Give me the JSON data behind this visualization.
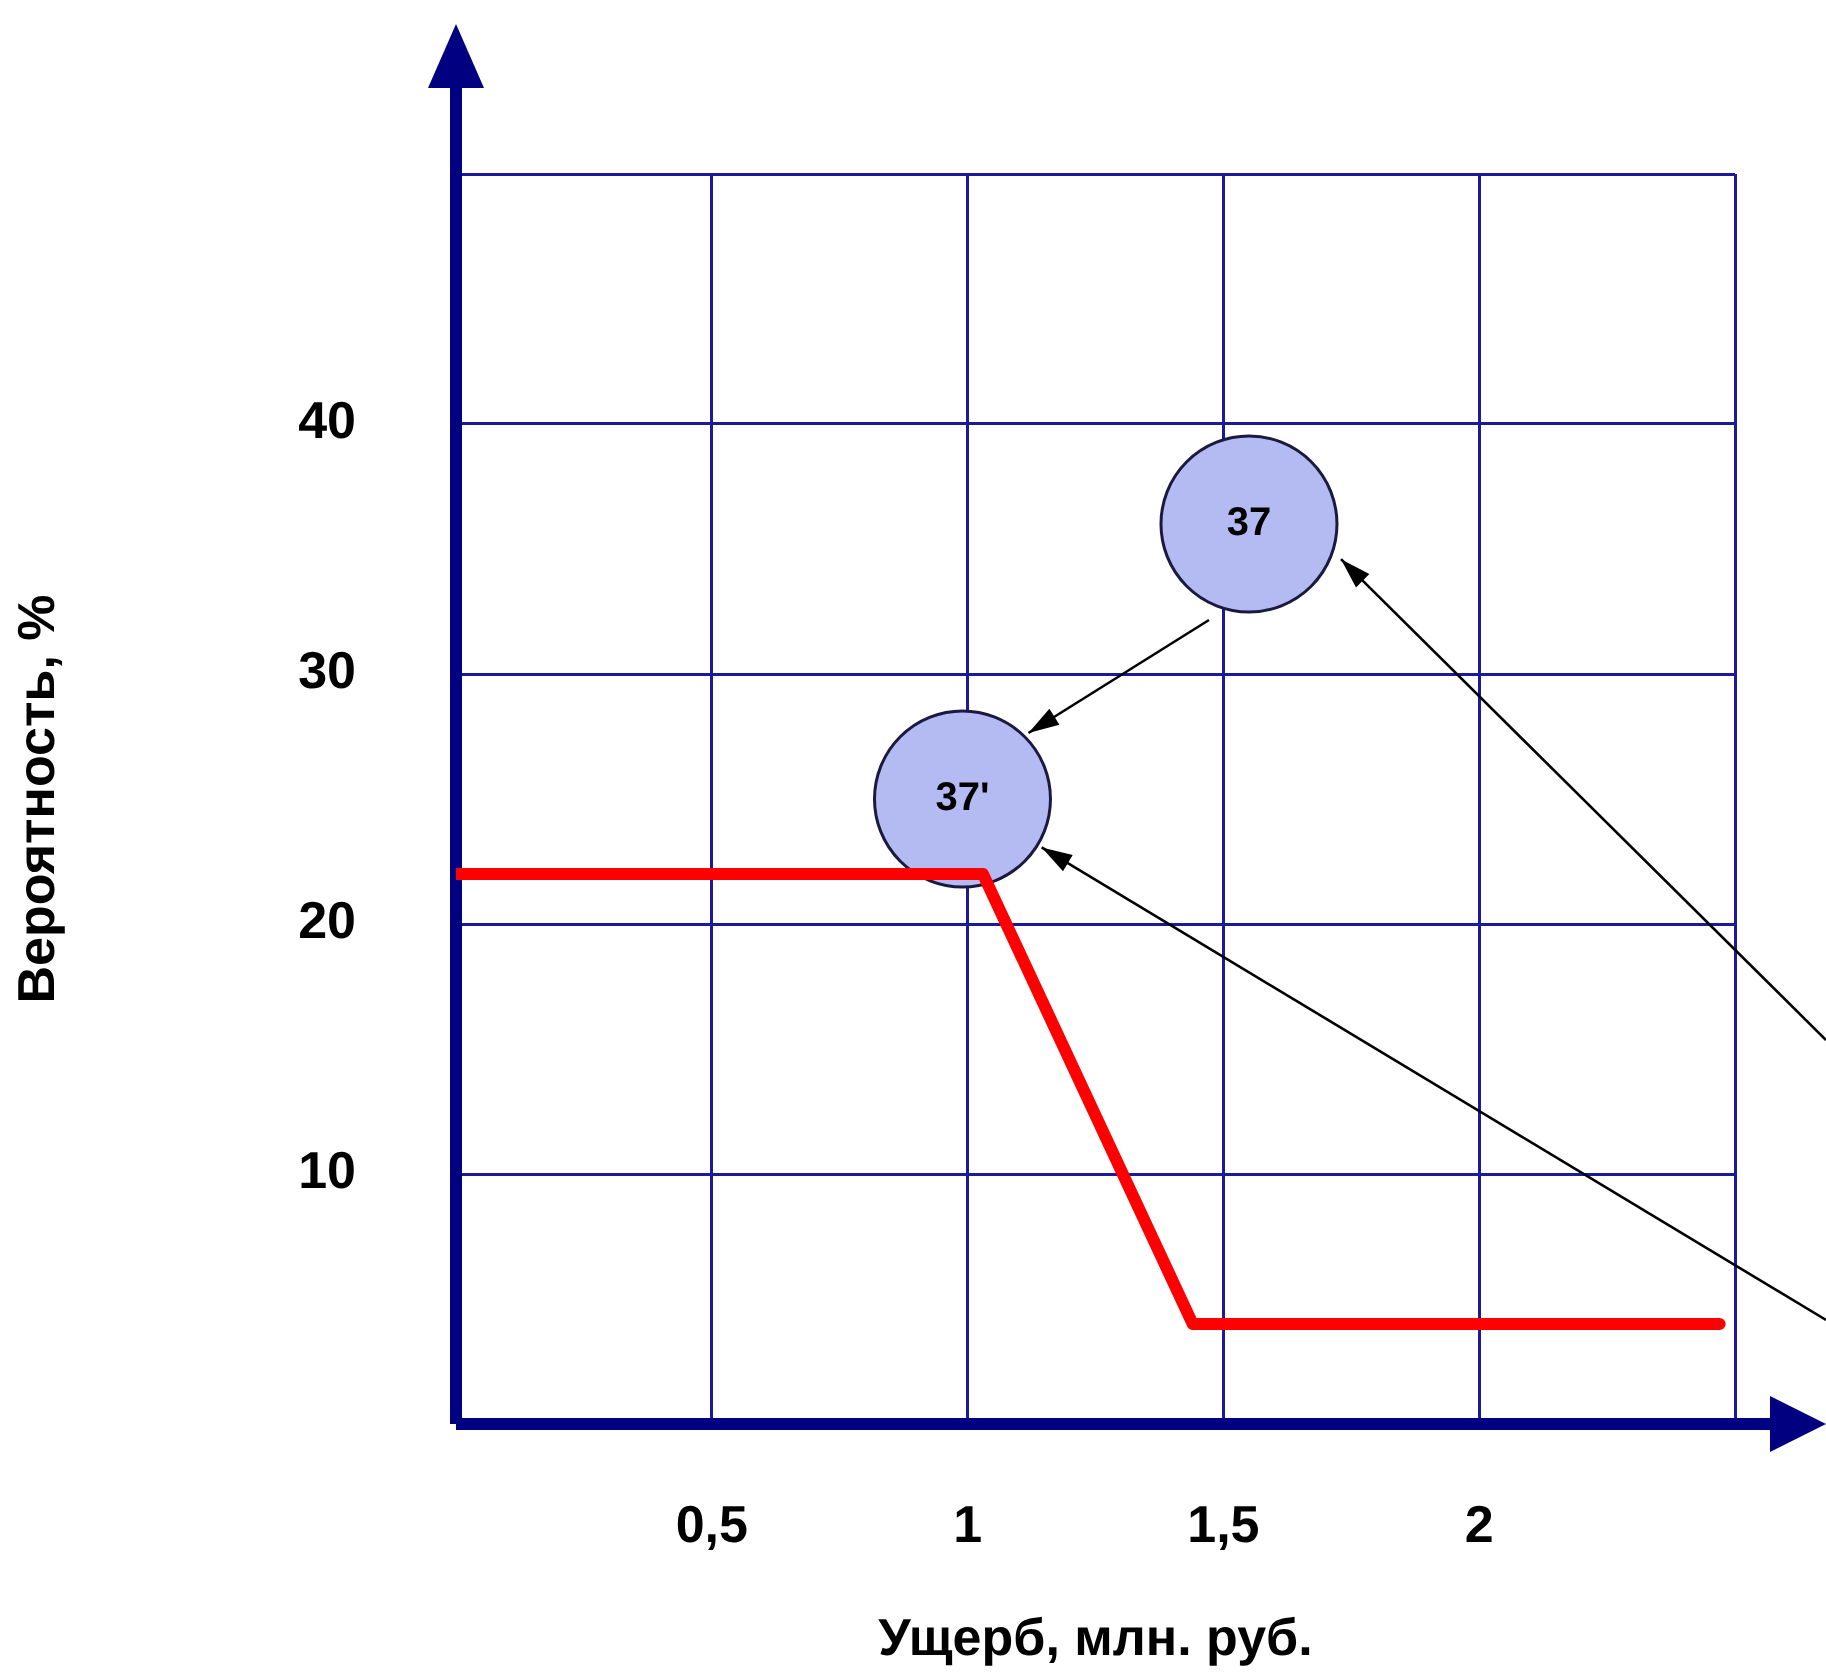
{
  "chart_data": {
    "type": "line",
    "xlabel": "Ущерб, млн. руб.",
    "ylabel": "Вероятность, %",
    "x": [
      0,
      1.03,
      1.44,
      2.47
    ],
    "series": [
      {
        "color": "#ff0000",
        "values": [
          22,
          22,
          4,
          4
        ]
      },
      {
        "type": "scatter",
        "marker": "circle",
        "color": "#b4baf2",
        "x": [
          1.55,
          0.99
        ],
        "values": [
          36,
          25
        ]
      }
    ],
    "annotations": [
      {
        "text": "37",
        "x": 1.55,
        "y": 36
      },
      {
        "text": "37'",
        "x": 0.99,
        "y": 25
      }
    ],
    "xlim": [
      0,
      2.5
    ],
    "xticks": [
      {
        "value": 0,
        "label": null
      },
      {
        "value": 0.5,
        "label": "0,5"
      },
      1,
      {
        "value": 1.5,
        "label": "1,5"
      },
      2,
      {
        "value": 2.5,
        "label": null
      }
    ],
    "ylim": [
      0,
      50
    ],
    "yticks": [
      {
        "value": 0,
        "label": null
      },
      10,
      20,
      30,
      40,
      {
        "value": 50,
        "label": null
      }
    ],
    "grid": true,
    "marker": "none",
    "line_style": "solid",
    "legend": false
  }
}
